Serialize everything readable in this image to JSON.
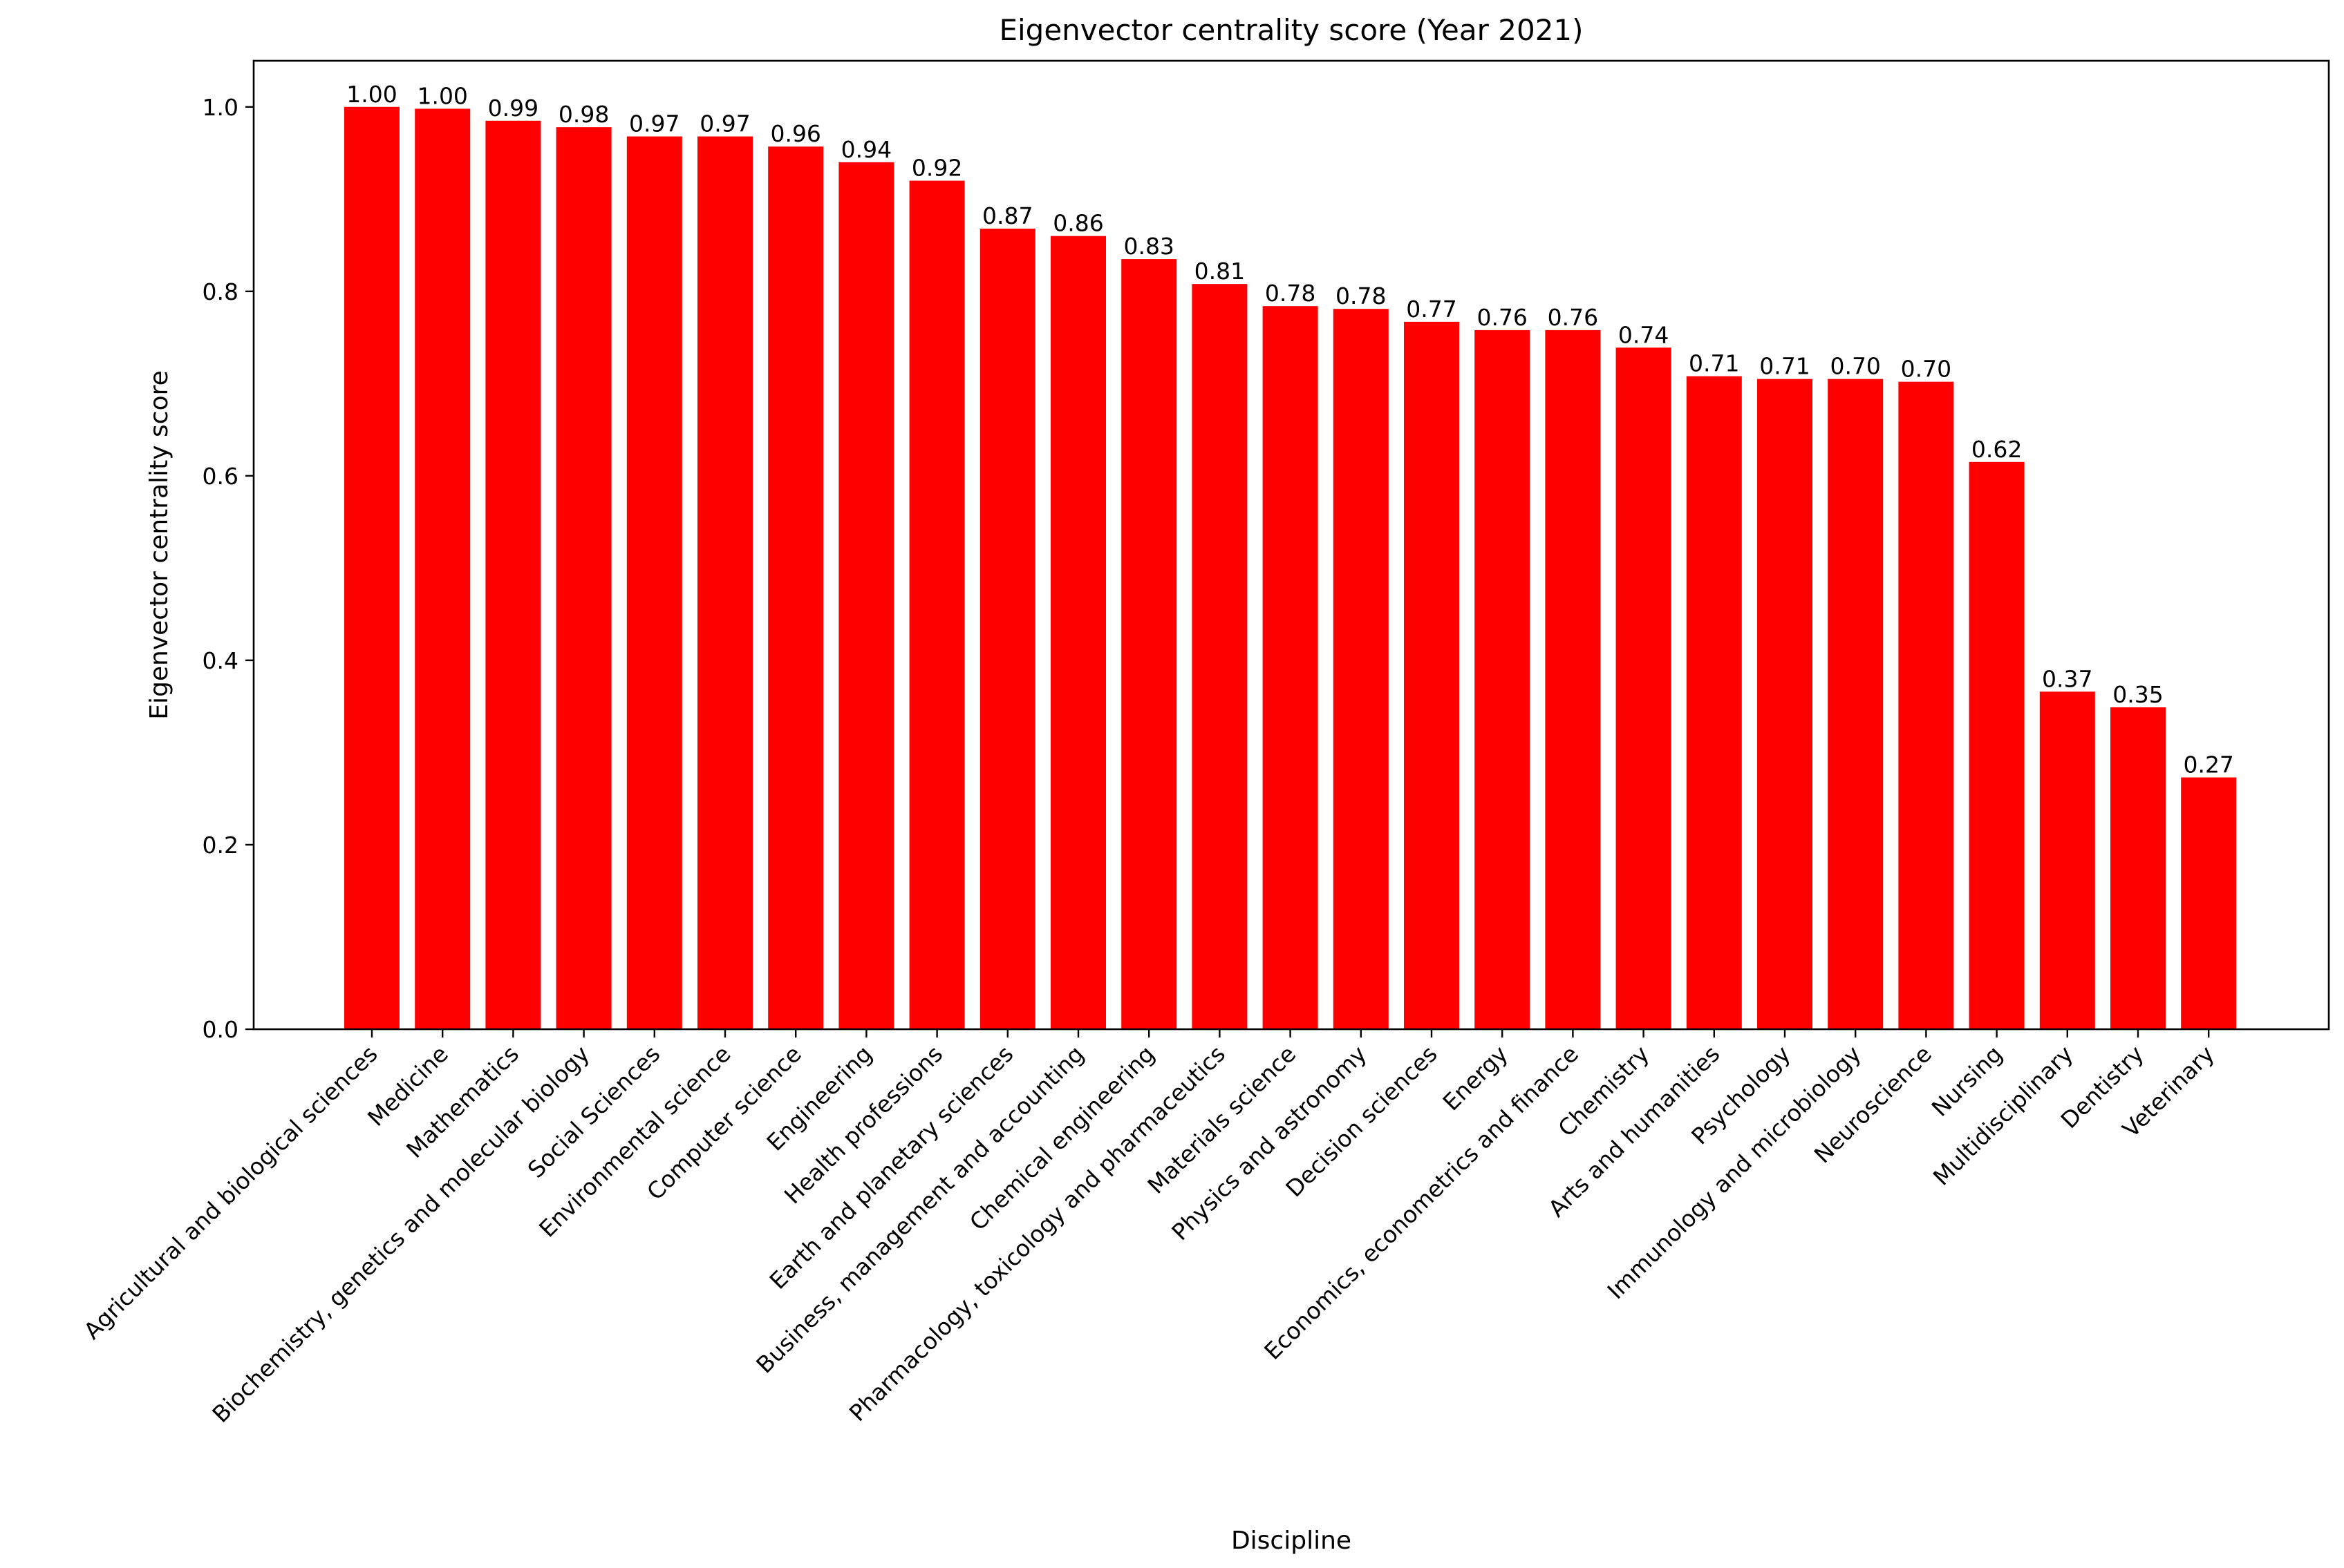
{
  "chart_data": {
    "type": "bar",
    "title": "Eigenvector centrality score (Year 2021)",
    "xlabel": "Discipline",
    "ylabel": "Eigenvector centrality score",
    "ylim": [
      0,
      1.05
    ],
    "yticks": [
      0.0,
      0.2,
      0.4,
      0.6,
      0.8,
      1.0
    ],
    "ytick_labels": [
      "0.0",
      "0.2",
      "0.4",
      "0.6",
      "0.8",
      "1.0"
    ],
    "grid": false,
    "bar_color": "#ff0000",
    "categories": [
      "Agricultural and biological sciences",
      "Medicine",
      "Mathematics",
      "Biochemistry, genetics and molecular biology",
      "Social Sciences",
      "Environmental science",
      "Computer science",
      "Engineering",
      "Health professions",
      "Earth and planetary sciences",
      "Business, management and accounting",
      "Chemical engineering",
      "Pharmacology, toxicology and pharmaceutics",
      "Materials science",
      "Physics and astronomy",
      "Decision sciences",
      "Energy",
      "Economics, econometrics and finance",
      "Chemistry",
      "Arts and humanities",
      "Psychology",
      "Immunology and microbiology",
      "Neuroscience",
      "Nursing",
      "Multidisciplinary",
      "Dentistry",
      "Veterinary"
    ],
    "values": [
      1.0,
      0.998,
      0.985,
      0.978,
      0.968,
      0.968,
      0.957,
      0.94,
      0.92,
      0.868,
      0.86,
      0.835,
      0.808,
      0.784,
      0.781,
      0.767,
      0.758,
      0.758,
      0.739,
      0.708,
      0.705,
      0.705,
      0.702,
      0.615,
      0.366,
      0.349,
      0.273
    ],
    "value_labels": [
      "1.00",
      "1.00",
      "0.99",
      "0.98",
      "0.97",
      "0.97",
      "0.96",
      "0.94",
      "0.92",
      "0.87",
      "0.86",
      "0.83",
      "0.81",
      "0.78",
      "0.78",
      "0.77",
      "0.76",
      "0.76",
      "0.74",
      "0.71",
      "0.71",
      "0.70",
      "0.70",
      "0.62",
      "0.37",
      "0.35",
      "0.27"
    ]
  }
}
